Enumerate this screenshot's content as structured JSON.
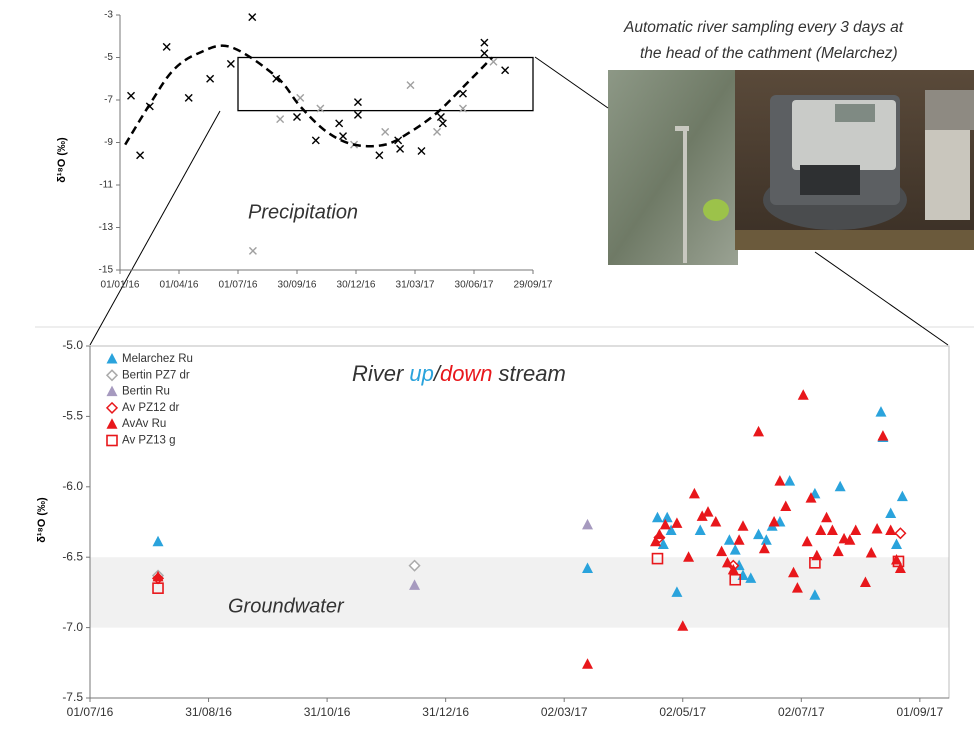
{
  "chart_data": [
    {
      "type": "scatter",
      "y_label": "δ¹⁸O (‰)",
      "annotation": "Precipitation",
      "xlim": [
        "01/01/16",
        "29/09/17"
      ],
      "xticks": [
        "01/01/16",
        "01/04/16",
        "01/07/16",
        "30/09/16",
        "30/12/16",
        "31/03/17",
        "30/06/17",
        "29/09/17"
      ],
      "ylim": [
        -15,
        -3
      ],
      "yticks": [
        -15,
        -13,
        -11,
        -9,
        -7,
        -5,
        -3
      ],
      "zoom_box": {
        "x": [
          "01/07/16",
          "29/09/17"
        ],
        "y": [
          -7.5,
          -5
        ]
      },
      "series": [
        {
          "color": "#000000",
          "marker": "x",
          "x": [
            "18/01/16",
            "01/02/16",
            "16/02/16",
            "13/03/16",
            "16/04/16",
            "19/05/16",
            "20/06/16",
            "23/07/16",
            "29/08/16",
            "30/09/16",
            "29/10/16",
            "04/12/16",
            "10/12/16",
            "02/01/17",
            "02/01/17",
            "04/02/17",
            "05/03/17",
            "08/03/17",
            "10/04/17",
            "10/05/17",
            "13/05/17",
            "13/06/17",
            "16/07/17",
            "16/07/17",
            "17/08/17"
          ],
          "values": [
            -6.8,
            -9.6,
            -7.3,
            -4.5,
            -6.9,
            -6.0,
            -5.3,
            -3.1,
            -6.0,
            -7.8,
            -8.9,
            -8.1,
            -8.7,
            -7.1,
            -7.7,
            -9.6,
            -8.9,
            -9.3,
            -9.4,
            -7.8,
            -8.1,
            -6.7,
            -4.3,
            -4.8,
            -5.6
          ]
        },
        {
          "color": "#a0a0a0",
          "marker": "x",
          "x": [
            "24/07/16",
            "04/09/16",
            "05/10/16",
            "05/11/16",
            "27/12/16",
            "13/02/17",
            "24/03/17",
            "04/05/17",
            "13/06/17",
            "30/07/17"
          ],
          "values": [
            -14.1,
            -7.9,
            -6.9,
            -7.4,
            -9.1,
            -8.5,
            -6.3,
            -8.5,
            -7.4,
            -5.2
          ]
        },
        {
          "color": "#000000",
          "line": "dashed",
          "x": [
            "09/01/16",
            "16/02/16",
            "23/03/16",
            "01/05/16",
            "19/06/16",
            "29/08/16",
            "05/10/16",
            "15/11/16",
            "27/12/16",
            "13/02/17",
            "24/03/17",
            "04/05/17",
            "13/06/17",
            "28/07/17"
          ],
          "values": [
            -9.1,
            -7.2,
            -5.6,
            -4.8,
            -4.5,
            -5.9,
            -7.3,
            -8.5,
            -9.1,
            -9.1,
            -8.5,
            -7.6,
            -6.4,
            -5.0
          ]
        }
      ]
    },
    {
      "type": "scatter",
      "title": [
        "River",
        "up",
        "/",
        "down",
        "stream"
      ],
      "title_colors": [
        "#333333",
        "#2aa3dc",
        "#333333",
        "#e8171b",
        "#333333"
      ],
      "y_label": "δ¹⁸O (‰)",
      "band": {
        "label": "Groundwater",
        "ylim": [
          -6.5,
          -7.0
        ],
        "color": "#f1f1f1"
      },
      "xlim": [
        "01/07/16",
        "16/09/17"
      ],
      "xticks": [
        "01/07/16",
        "31/08/16",
        "31/10/16",
        "31/12/16",
        "02/03/17",
        "02/05/17",
        "02/07/17",
        "01/09/17"
      ],
      "ylim": [
        -7.5,
        -5.0
      ],
      "yticks": [
        {
          "value": -7.5,
          "label": "-7.5"
        },
        {
          "value": -7,
          "label": "-7.0"
        },
        -6.5,
        {
          "value": -6,
          "label": "-6.0"
        },
        -5.5,
        {
          "value": -5,
          "label": "-5.0"
        }
      ],
      "series": [
        {
          "name": "Melarchez Ru",
          "color": "#2aa3dc",
          "marker": "triangle",
          "x": [
            "05/08/16",
            "14/03/17",
            "19/04/17",
            "22/04/17",
            "24/04/17",
            "26/04/17",
            "29/04/17",
            "11/05/17",
            "26/05/17",
            "29/05/17",
            "31/05/17",
            "02/06/17",
            "06/06/17",
            "10/06/17",
            "14/06/17",
            "17/06/17",
            "21/06/17",
            "26/06/17",
            "09/07/17",
            "09/07/17",
            "22/07/17",
            "12/08/17",
            "13/08/17",
            "17/08/17",
            "20/08/17",
            "23/08/17"
          ],
          "values": [
            -6.39,
            -6.58,
            -6.22,
            -6.41,
            -6.22,
            -6.31,
            -6.75,
            -6.31,
            -6.38,
            -6.45,
            -6.56,
            -6.63,
            -6.65,
            -6.34,
            -6.38,
            -6.28,
            -6.25,
            -5.96,
            -6.77,
            -6.05,
            -6.0,
            -5.47,
            -5.65,
            -6.19,
            -6.41,
            -6.07
          ]
        },
        {
          "name": "Bertin PZ7 dr",
          "color": "#aaaaaa",
          "marker": "diamond-open",
          "x": [
            "05/08/16",
            "15/12/16"
          ],
          "values": [
            -6.63,
            -6.56
          ]
        },
        {
          "name": "Bertin Ru",
          "color": "#a69abf",
          "marker": "triangle",
          "x": [
            "15/12/16",
            "14/03/17"
          ],
          "values": [
            -6.7,
            -6.27
          ]
        },
        {
          "name": "Av PZ12 dr",
          "color": "#e8171b",
          "marker": "diamond-open",
          "x": [
            "05/08/16",
            "20/04/17",
            "28/05/17",
            "22/08/17"
          ],
          "values": [
            -6.65,
            -6.36,
            -6.56,
            -6.33
          ]
        },
        {
          "name": "AvAv Ru",
          "color": "#e8171b",
          "marker": "triangle",
          "x": [
            "05/08/16",
            "14/03/17",
            "18/04/17",
            "20/04/17",
            "23/04/17",
            "29/04/17",
            "02/05/17",
            "05/05/17",
            "08/05/17",
            "12/05/17",
            "15/05/17",
            "19/05/17",
            "22/05/17",
            "25/05/17",
            "28/05/17",
            "31/05/17",
            "02/06/17",
            "10/06/17",
            "13/06/17",
            "18/06/17",
            "21/06/17",
            "24/06/17",
            "28/06/17",
            "30/06/17",
            "03/07/17",
            "05/07/17",
            "07/07/17",
            "10/07/17",
            "12/07/17",
            "15/07/17",
            "18/07/17",
            "21/07/17",
            "24/07/17",
            "27/07/17",
            "30/07/17",
            "04/08/17",
            "07/08/17",
            "10/08/17",
            "13/08/17",
            "17/08/17",
            "20/08/17",
            "22/08/17"
          ],
          "values": [
            -6.64,
            -7.26,
            -6.39,
            -6.34,
            -6.27,
            -6.26,
            -6.99,
            -6.5,
            -6.05,
            -6.21,
            -6.18,
            -6.25,
            -6.46,
            -6.54,
            -6.59,
            -6.38,
            -6.28,
            -5.61,
            -6.44,
            -6.25,
            -5.96,
            -6.14,
            -6.61,
            -6.72,
            -5.35,
            -6.39,
            -6.08,
            -6.49,
            -6.31,
            -6.22,
            -6.31,
            -6.46,
            -6.37,
            -6.38,
            -6.31,
            -6.68,
            -6.47,
            -6.3,
            -5.64,
            -6.31,
            -6.52,
            -6.58
          ]
        },
        {
          "name": "Av PZ13 g",
          "color": "#e8171b",
          "marker": "square-open",
          "x": [
            "05/08/16",
            "19/04/17",
            "29/05/17",
            "09/07/17",
            "21/08/17"
          ],
          "values": [
            -6.72,
            -6.51,
            -6.66,
            -6.54,
            -6.53
          ]
        }
      ]
    }
  ],
  "photo_caption": [
    "Automatic river sampling every 3 days at",
    "the head of the cathment (Melarchez)"
  ]
}
